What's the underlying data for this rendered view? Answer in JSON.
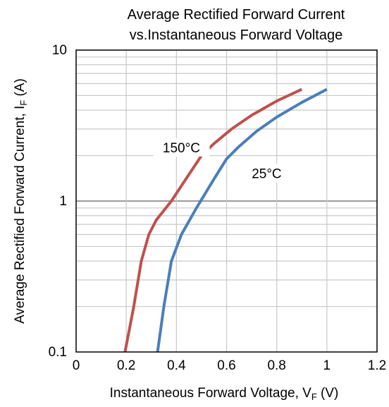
{
  "chart_data": {
    "type": "line",
    "title_lines": [
      "Average Rectified Forward Current",
      "vs.Instantaneous Forward Voltage"
    ],
    "xlabel": {
      "main": "Instantaneous Forward Voltage, V",
      "sub": "F",
      "unit": " (V)"
    },
    "ylabel": {
      "main": "Average Rectified Forward Current, I",
      "sub": "F",
      "unit": " (A)"
    },
    "x_scale": "linear",
    "y_scale": "log",
    "xlim": [
      0,
      1.2
    ],
    "ylim": [
      0.1,
      10
    ],
    "x_ticks": [
      0,
      0.2,
      0.4,
      0.6,
      0.8,
      1,
      1.2
    ],
    "x_tick_labels": [
      "0",
      "0.2",
      "0.4",
      "0.6",
      "0.8",
      "1",
      "1.2"
    ],
    "y_ticks": [
      0.1,
      1,
      10
    ],
    "y_tick_labels": [
      "0.1",
      "1",
      "10"
    ],
    "grid": true,
    "series": [
      {
        "name": "150°C",
        "color": "#c0504d",
        "x": [
          0.195,
          0.23,
          0.26,
          0.29,
          0.32,
          0.38,
          0.45,
          0.5,
          0.55,
          0.62,
          0.7,
          0.8,
          0.9
        ],
        "y": [
          0.1,
          0.2,
          0.4,
          0.6,
          0.75,
          1.0,
          1.5,
          2.0,
          2.4,
          3.0,
          3.7,
          4.6,
          5.5
        ]
      },
      {
        "name": "25°C",
        "color": "#4a7ebb",
        "x": [
          0.325,
          0.35,
          0.38,
          0.42,
          0.48,
          0.55,
          0.6,
          0.65,
          0.72,
          0.8,
          0.9,
          1.0
        ],
        "y": [
          0.1,
          0.2,
          0.4,
          0.6,
          0.9,
          1.4,
          1.9,
          2.3,
          2.9,
          3.6,
          4.5,
          5.5
        ]
      }
    ]
  }
}
